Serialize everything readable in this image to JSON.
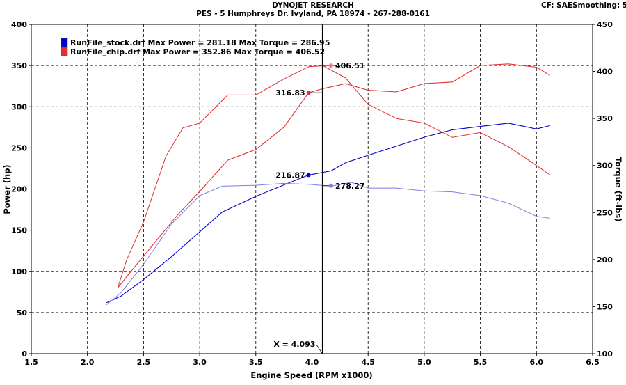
{
  "header": {
    "title": "DYNOJET RESEARCH",
    "subtitle": "PES - 5 Humphreys Dr. Ivyland, PA 18974 - 267-288-0161",
    "cf_label": "CF: SAE",
    "smoothing_label": "Smoothing: 5"
  },
  "colors": {
    "stock": "#0000cc",
    "stock_torque": "#7f7fe8",
    "chip": "#e03030",
    "grid": "#000000",
    "cursor": "#000000"
  },
  "chart_data": {
    "type": "line",
    "xlabel": "Engine Speed (RPM x1000)",
    "ylabel": "Power (hp)",
    "y2label": "Torque (ft-lbs)",
    "xlim": [
      1.5,
      6.5
    ],
    "ylim": [
      0,
      400
    ],
    "y2lim": [
      100,
      450
    ],
    "x_ticks": [
      "1.5",
      "2.0",
      "2.5",
      "3.0",
      "3.5",
      "4.0",
      "4.5",
      "5.0",
      "5.5",
      "6.0",
      "6.5"
    ],
    "y_ticks": [
      "0",
      "50",
      "100",
      "150",
      "200",
      "250",
      "300",
      "350",
      "400"
    ],
    "y2_ticks": [
      "100",
      "150",
      "200",
      "250",
      "300",
      "350",
      "400",
      "450"
    ],
    "grid": "dashed",
    "legend_position": "top-left",
    "legend": [
      {
        "text": "RunFile_stock.drf Max Power = 281.18 Max Torque = 286.95",
        "color": "#0000cc"
      },
      {
        "text": "RunFile_chip.drf Max Power = 352.86 Max Torque = 406.52",
        "color": "#e03030"
      }
    ],
    "cursor": {
      "x": 4.093,
      "label": "X = 4.093"
    },
    "annotations": [
      {
        "label": "406.51",
        "x": 4.17,
        "y": 350,
        "color": "#f07878",
        "side": "right"
      },
      {
        "label": "316.83",
        "x": 3.97,
        "y": 317,
        "color": "#e03030",
        "side": "left"
      },
      {
        "label": "216.87",
        "x": 3.97,
        "y": 217,
        "color": "#0000cc",
        "side": "left"
      },
      {
        "label": "278.27",
        "x": 4.17,
        "y": 204,
        "color": "#7f7fe8",
        "side": "right"
      }
    ],
    "series": [
      {
        "name": "RunFile_stock.drf",
        "quantity": "power",
        "axis": "left",
        "color": "#0000cc",
        "width": 1.1,
        "x": [
          2.17,
          2.3,
          2.5,
          2.75,
          3.0,
          3.2,
          3.5,
          3.75,
          3.97,
          4.17,
          4.3,
          4.5,
          4.75,
          5.0,
          5.25,
          5.5,
          5.75,
          6.0,
          6.12
        ],
        "y": [
          62,
          70,
          90,
          118,
          148,
          172,
          191,
          205,
          217,
          222,
          232,
          241,
          252,
          263,
          272,
          276,
          280,
          273,
          277
        ]
      },
      {
        "name": "RunFile_stock.drf",
        "quantity": "torque",
        "axis": "right",
        "color": "#7f7fe8",
        "width": 1.0,
        "x": [
          2.17,
          2.3,
          2.5,
          2.75,
          3.0,
          3.2,
          3.5,
          3.75,
          3.97,
          4.17,
          4.35,
          4.5,
          4.75,
          5.0,
          5.25,
          5.5,
          5.75,
          6.0,
          6.12
        ],
        "y": [
          152,
          165,
          195,
          238,
          268,
          278,
          279,
          281,
          280,
          278,
          282,
          276,
          276,
          273,
          272,
          268,
          260,
          246,
          244
        ]
      },
      {
        "name": "RunFile_chip.drf",
        "quantity": "power",
        "axis": "left",
        "color": "#e03030",
        "width": 1.1,
        "x": [
          2.27,
          2.4,
          2.6,
          2.8,
          3.0,
          3.25,
          3.5,
          3.75,
          3.97,
          4.1,
          4.3,
          4.5,
          4.75,
          5.0,
          5.25,
          5.5,
          5.75,
          6.0,
          6.12
        ],
        "y": [
          80,
          102,
          135,
          168,
          197,
          235,
          248,
          275,
          317,
          322,
          328,
          320,
          318,
          328,
          330,
          350,
          352,
          348,
          338
        ]
      },
      {
        "name": "RunFile_chip.drf",
        "quantity": "torque",
        "axis": "right",
        "color": "#e03030",
        "width": 1.0,
        "x": [
          2.27,
          2.35,
          2.5,
          2.7,
          2.85,
          3.0,
          3.25,
          3.5,
          3.75,
          3.97,
          4.1,
          4.3,
          4.5,
          4.75,
          5.0,
          5.25,
          5.5,
          5.75,
          6.0,
          6.12
        ],
        "y": [
          170,
          200,
          240,
          310,
          340,
          345,
          375,
          375,
          392,
          405,
          406,
          393,
          365,
          350,
          345,
          330,
          335,
          320,
          300,
          290
        ]
      }
    ]
  }
}
